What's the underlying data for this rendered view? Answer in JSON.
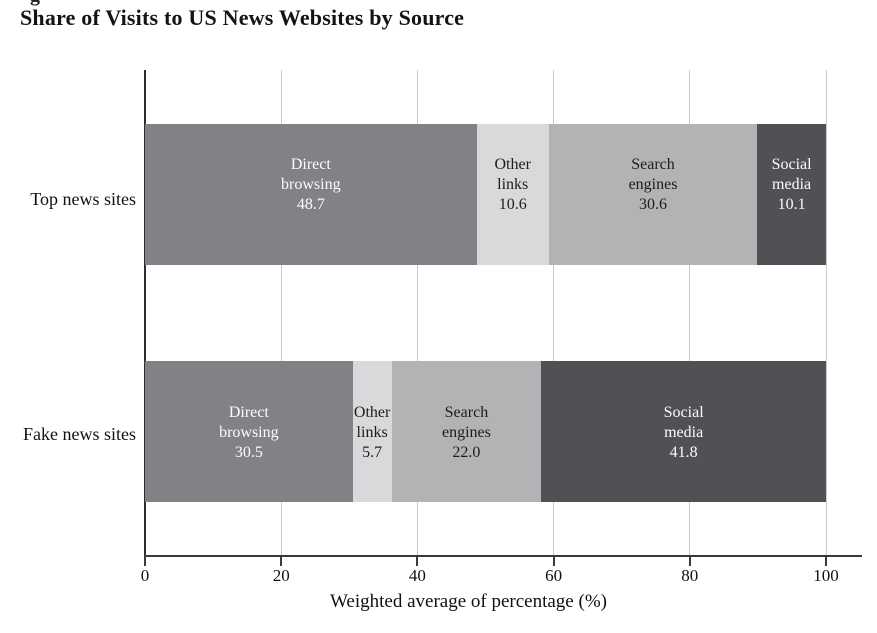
{
  "page": {
    "cropped_fragment": "g"
  },
  "chart_data": {
    "type": "bar",
    "orientation": "horizontal-stacked",
    "title": "Share of Visits to US News Websites by Source",
    "categories": [
      "Top news sites",
      "Fake news sites"
    ],
    "series": [
      {
        "name": "Direct browsing",
        "values": [
          48.7,
          30.5
        ],
        "color": "#828286",
        "label_color": "#fbfbfb"
      },
      {
        "name": "Other links",
        "values": [
          10.6,
          5.7
        ],
        "color": "#d9d9db",
        "label_color": "#1d1d1d"
      },
      {
        "name": "Search engines",
        "values": [
          30.6,
          22.0
        ],
        "color": "#b3b3b5",
        "label_color": "#1d1d1d"
      },
      {
        "name": "Social media",
        "values": [
          10.1,
          41.8
        ],
        "color": "#515155",
        "label_color": "#fbfbfb"
      }
    ],
    "xlabel": "Weighted average of percentage (%)",
    "x_ticks": [
      0,
      20,
      40,
      60,
      80,
      100
    ],
    "xlim": [
      0,
      100
    ],
    "grid": true,
    "value_labels_decimals": 1,
    "colors": {
      "axis": "#3a3a3a",
      "gridline": "#cbcbcb",
      "background": "#ffffff"
    }
  }
}
